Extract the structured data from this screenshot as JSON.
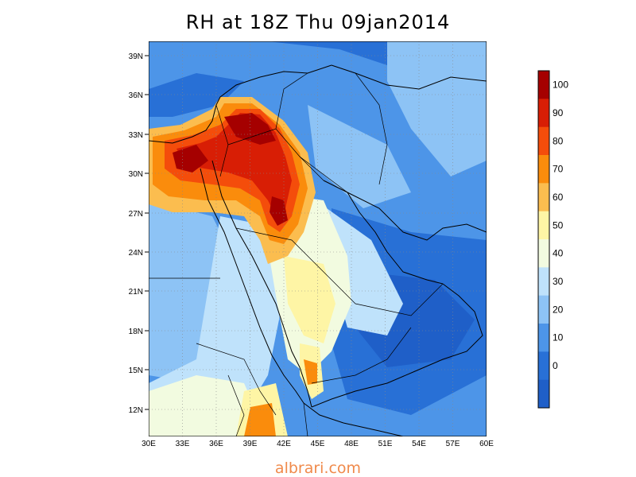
{
  "title": "RH at 18Z Thu 09jan2014",
  "watermark": "albrari.com",
  "lat_ticks": [
    "39N",
    "36N",
    "33N",
    "30N",
    "27N",
    "24N",
    "21N",
    "18N",
    "15N",
    "12N"
  ],
  "lon_ticks": [
    "30E",
    "33E",
    "36E",
    "39E",
    "42E",
    "45E",
    "48E",
    "51E",
    "54E",
    "57E",
    "60E"
  ],
  "colorbar": {
    "labels": [
      "100",
      "90",
      "80",
      "70",
      "60",
      "50",
      "40",
      "30",
      "20",
      "10",
      "0"
    ],
    "colors": [
      "#a50000",
      "#d81e05",
      "#f44d0b",
      "#fa8c0c",
      "#fbbd4f",
      "#fef5a5",
      "#f2fbe0",
      "#bfe2fb",
      "#8dc3f5",
      "#4d95e8",
      "#2870d6",
      "#1f5fc8"
    ]
  },
  "map": {
    "region": "Arabian Peninsula",
    "lon_range": [
      30,
      60
    ],
    "lat_range": [
      10,
      40
    ],
    "field": "relative humidity (%)"
  }
}
